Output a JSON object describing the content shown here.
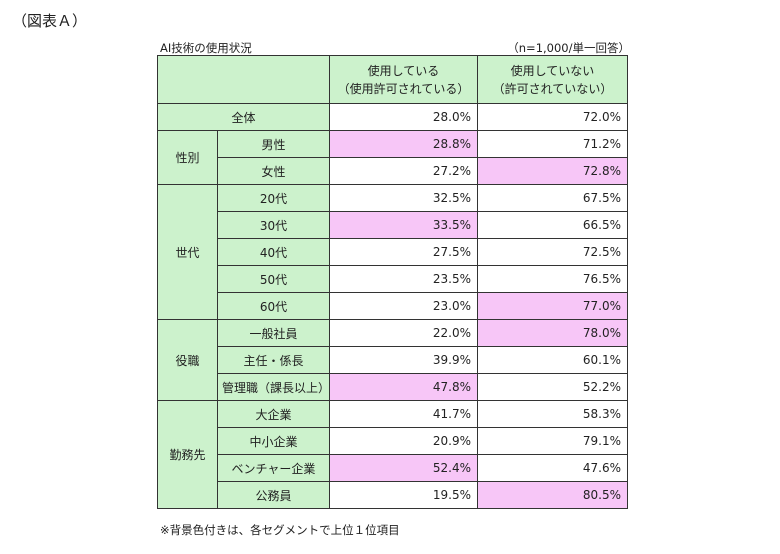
{
  "figure_label": "（図表Ａ）",
  "table_title": "AI技術の使用状況",
  "sample_note": "（n=1,000/単一回答）",
  "headers": {
    "col1": "使用している\n（使用許可されている）",
    "col2": "使用していない\n（許可されていない）"
  },
  "total": {
    "label": "全体",
    "use": "28.0%",
    "nouse": "72.0%"
  },
  "groups": [
    {
      "name": "性別",
      "rows": [
        {
          "label": "男性",
          "use": "28.8%",
          "nouse": "71.2%",
          "top": "use"
        },
        {
          "label": "女性",
          "use": "27.2%",
          "nouse": "72.8%",
          "top": "nouse"
        }
      ]
    },
    {
      "name": "世代",
      "rows": [
        {
          "label": "20代",
          "use": "32.5%",
          "nouse": "67.5%",
          "top": ""
        },
        {
          "label": "30代",
          "use": "33.5%",
          "nouse": "66.5%",
          "top": "use"
        },
        {
          "label": "40代",
          "use": "27.5%",
          "nouse": "72.5%",
          "top": ""
        },
        {
          "label": "50代",
          "use": "23.5%",
          "nouse": "76.5%",
          "top": ""
        },
        {
          "label": "60代",
          "use": "23.0%",
          "nouse": "77.0%",
          "top": "nouse"
        }
      ]
    },
    {
      "name": "役職",
      "rows": [
        {
          "label": "一般社員",
          "use": "22.0%",
          "nouse": "78.0%",
          "top": "nouse"
        },
        {
          "label": "主任・係長",
          "use": "39.9%",
          "nouse": "60.1%",
          "top": ""
        },
        {
          "label": "管理職（課長以上）",
          "use": "47.8%",
          "nouse": "52.2%",
          "top": "use"
        }
      ]
    },
    {
      "name": "勤務先",
      "rows": [
        {
          "label": "大企業",
          "use": "41.7%",
          "nouse": "58.3%",
          "top": ""
        },
        {
          "label": "中小企業",
          "use": "20.9%",
          "nouse": "79.1%",
          "top": ""
        },
        {
          "label": "ベンチャー企業",
          "use": "52.4%",
          "nouse": "47.6%",
          "top": "use"
        },
        {
          "label": "公務員",
          "use": "19.5%",
          "nouse": "80.5%",
          "top": "nouse"
        }
      ]
    }
  ],
  "footnote": "※背景色付きは、各セグメントで上位１位項目",
  "colors": {
    "header_green": "#ccf2cc",
    "highlight_pink": "#f7c6f7"
  }
}
